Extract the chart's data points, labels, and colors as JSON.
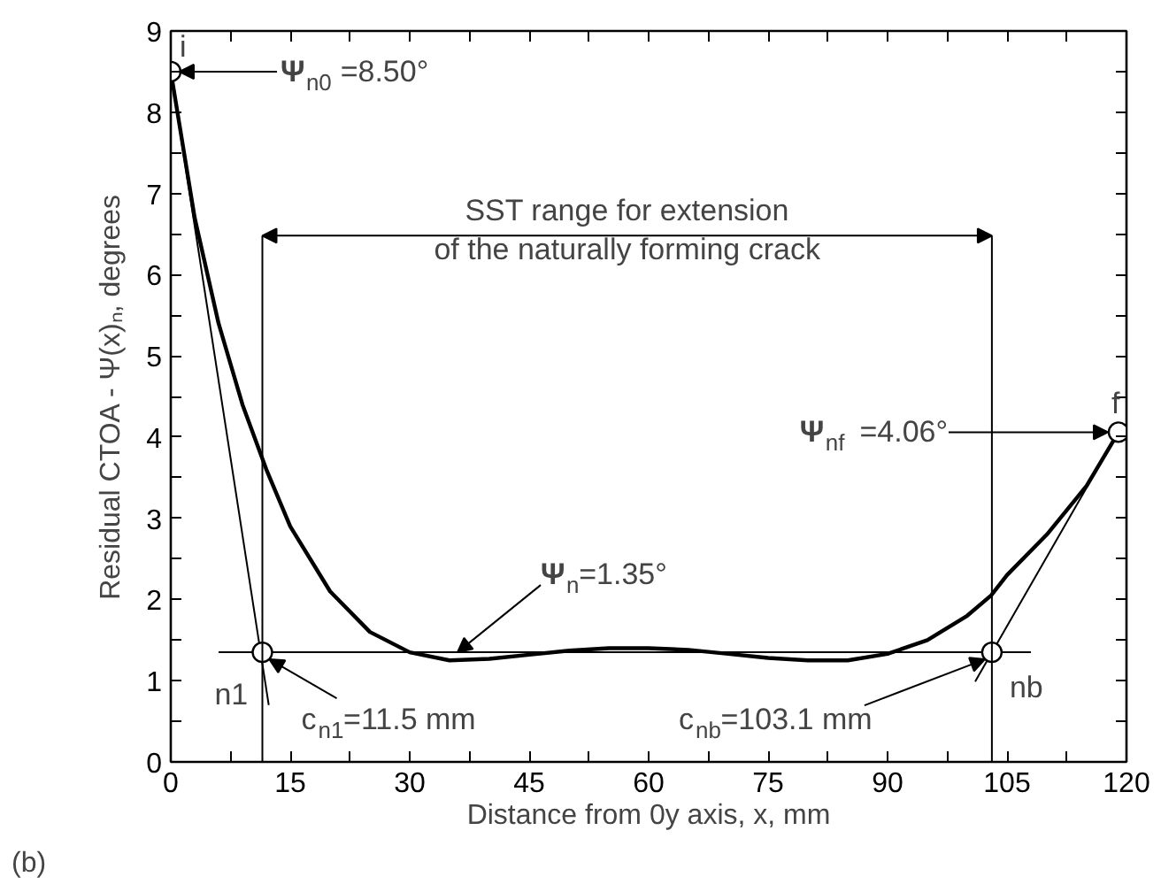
{
  "chart_data": {
    "type": "line",
    "xlabel": "Distance from 0y axis, x, mm",
    "ylabel": "Residual CTOA - Ψ(x)ₙ, degrees",
    "x": [
      0,
      3,
      6,
      9,
      12,
      15,
      20,
      25,
      30,
      35,
      40,
      45,
      50,
      55,
      60,
      65,
      70,
      75,
      80,
      85,
      90,
      95,
      100,
      103,
      105,
      110,
      115,
      119
    ],
    "series": [
      {
        "color": "#000000",
        "values": [
          8.5,
          6.7,
          5.4,
          4.4,
          3.6,
          2.9,
          2.1,
          1.6,
          1.35,
          1.25,
          1.27,
          1.32,
          1.37,
          1.4,
          1.4,
          1.38,
          1.33,
          1.28,
          1.25,
          1.25,
          1.33,
          1.5,
          1.8,
          2.05,
          2.3,
          2.8,
          3.4,
          4.06
        ]
      },
      {
        "color": "#000000",
        "x": [
          0,
          12.3
        ],
        "values": [
          8.5,
          0.7
        ]
      },
      {
        "color": "#000000",
        "x": [
          119,
          101
        ],
        "values": [
          4.06,
          0.99
        ]
      },
      {
        "color": "#000000",
        "x": [
          6,
          108
        ],
        "values": [
          1.35,
          1.35
        ]
      },
      {
        "type": "scatter",
        "color": "#000000",
        "marker": "circle",
        "x": [
          0,
          11.5,
          103.1,
          119
        ],
        "values": [
          8.5,
          1.35,
          1.35,
          4.06
        ]
      }
    ],
    "ref_lines": [
      {
        "axis": "x",
        "value": 11.5
      },
      {
        "axis": "x",
        "value": 103.1
      }
    ],
    "annotations": [
      {
        "text": "i",
        "x": 0,
        "y": 8.5
      },
      "Ψ$_{n0}$ =8.50°",
      {
        "text": "f",
        "x": 119,
        "y": 4.06
      },
      {
        "text": "Ψ$_{nf}$ =4.06°",
        "x": 119,
        "y": 4.06
      },
      {
        "text": "Ψ$_{n}$=1.35°",
        "x": 36,
        "y": 1.35
      },
      {
        "text": "n1",
        "x": 11.5,
        "y": 1.35
      },
      {
        "text": "c$_{n1}$=11.5 mm",
        "x": 11.5,
        "y": 1.35
      },
      {
        "text": "nb",
        "x": 103.1,
        "y": 1.35
      },
      {
        "text": "c$_{nb}$=103.1 mm",
        "x": 103.1,
        "y": 1.35
      },
      "SST range for extension\nof the naturally forming crack",
      "(b)"
    ],
    "xlim": [
      0,
      120
    ],
    "ylim": [
      0,
      9
    ],
    "xticks": [
      0,
      {
        "value": 7.5,
        "label": null
      },
      15,
      {
        "value": 22.5,
        "label": null
      },
      30,
      {
        "value": 37.5,
        "label": null
      },
      45,
      {
        "value": 52.5,
        "label": null
      },
      60,
      {
        "value": 67.5,
        "label": null
      },
      75,
      {
        "value": 82.5,
        "label": null
      },
      90,
      {
        "value": 97.5,
        "label": null
      },
      105,
      {
        "value": 112.5,
        "label": null
      },
      120
    ],
    "yticks": [
      0,
      {
        "value": 0.5,
        "label": null
      },
      1,
      {
        "value": 1.5,
        "label": null
      },
      2,
      {
        "value": 2.5,
        "label": null
      },
      3,
      {
        "value": 3.5,
        "label": null
      },
      4,
      {
        "value": 4.5,
        "label": null
      },
      5,
      {
        "value": 5.5,
        "label": null
      },
      6,
      {
        "value": 6.5,
        "label": null
      },
      7,
      {
        "value": 7.5,
        "label": null
      },
      8,
      {
        "value": 8.5,
        "label": null
      },
      9
    ],
    "grid": false,
    "line_style": "solid"
  }
}
